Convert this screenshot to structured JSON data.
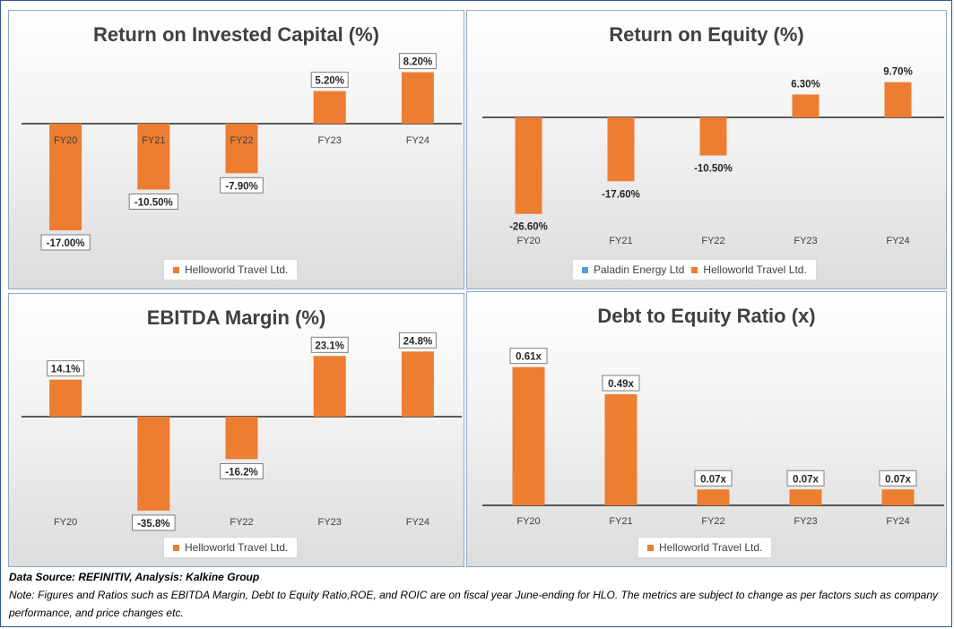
{
  "colors": {
    "bar": "#ed7d31",
    "axis": "#000000",
    "series2": "#5b9bd5"
  },
  "charts": [
    {
      "title": "Return on Invested Capital (%)",
      "legend": [
        {
          "label": "Helloworld Travel Ltd.",
          "color": "#ed7d31"
        }
      ],
      "chart_data": {
        "type": "bar",
        "title": "Return on Invested Capital (%)",
        "categories": [
          "FY20",
          "FY21",
          "FY22",
          "FY23",
          "FY24"
        ],
        "series": [
          {
            "name": "Helloworld Travel Ltd.",
            "values": [
              -17.0,
              -10.5,
              -7.9,
              5.2,
              8.2
            ]
          }
        ],
        "data_labels": [
          "-17.00%",
          "-10.50%",
          "-7.90%",
          "5.20%",
          "8.20%"
        ],
        "label_boxed": true,
        "ylim": [
          -20,
          10
        ]
      }
    },
    {
      "title": "Return on Equity (%)",
      "legend": [
        {
          "label": "Paladin Energy Ltd",
          "color": "#5b9bd5"
        },
        {
          "label": "Helloworld Travel Ltd.",
          "color": "#ed7d31"
        }
      ],
      "chart_data": {
        "type": "bar",
        "title": "Return on Equity (%)",
        "categories": [
          "FY20",
          "FY21",
          "FY22",
          "FY23",
          "FY24"
        ],
        "series": [
          {
            "name": "Helloworld Travel Ltd.",
            "values": [
              -26.6,
              -17.6,
              -10.5,
              6.3,
              9.7
            ]
          }
        ],
        "data_labels": [
          "-26.60%",
          "-17.60%",
          "-10.50%",
          "6.30%",
          "9.70%"
        ],
        "label_boxed": false,
        "ylim": [
          -30,
          12
        ]
      }
    },
    {
      "title": "EBITDA Margin (%)",
      "legend": [
        {
          "label": "Helloworld Travel Ltd.",
          "color": "#ed7d31"
        }
      ],
      "chart_data": {
        "type": "bar",
        "title": "EBITDA Margin (%)",
        "categories": [
          "FY20",
          "FY21",
          "FY22",
          "FY23",
          "FY24"
        ],
        "series": [
          {
            "name": "Helloworld Travel Ltd.",
            "values": [
              14.1,
              -35.8,
              -16.2,
              23.1,
              24.8
            ]
          }
        ],
        "data_labels": [
          "14.1%",
          "-35.8%",
          "-16.2%",
          "23.1%",
          "24.8%"
        ],
        "label_boxed": true,
        "ylim": [
          -40,
          30
        ]
      }
    },
    {
      "title": "Debt to Equity Ratio (x)",
      "legend": [
        {
          "label": "Helloworld Travel Ltd.",
          "color": "#ed7d31"
        }
      ],
      "chart_data": {
        "type": "bar",
        "title": "Debt to Equity Ratio (x)",
        "categories": [
          "FY20",
          "FY21",
          "FY22",
          "FY23",
          "FY24"
        ],
        "series": [
          {
            "name": "Helloworld Travel Ltd.",
            "values": [
              0.61,
              0.49,
              0.07,
              0.07,
              0.07
            ]
          }
        ],
        "data_labels": [
          "0.61x",
          "0.49x",
          "0.07x",
          "0.07x",
          "0.07x"
        ],
        "label_boxed": true,
        "ylim": [
          0,
          0.7
        ]
      }
    }
  ],
  "footer": {
    "source": "Data Source: REFINITIV, Analysis: Kalkine Group",
    "note": "Note: Figures and Ratios such as EBITDA Margin, Debt to Equity Ratio,ROE, and ROIC are on fiscal year June-ending for HLO. The metrics are subject to change as per factors such as company performance, and price changes etc."
  }
}
